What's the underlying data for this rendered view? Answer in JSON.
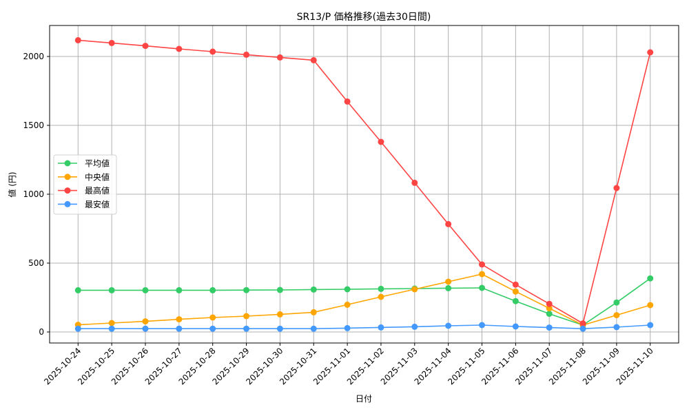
{
  "chart_data": {
    "type": "line",
    "title": "SR13/P 価格推移(過去30日間)",
    "xlabel": "日付",
    "ylabel": "値 (円)",
    "x": [
      "2025-10-24",
      "2025-10-25",
      "2025-10-26",
      "2025-10-27",
      "2025-10-28",
      "2025-10-29",
      "2025-10-30",
      "2025-10-31",
      "2025-11-01",
      "2025-11-02",
      "2025-11-03",
      "2025-11-04",
      "2025-11-05",
      "2025-11-06",
      "2025-11-07",
      "2025-11-08",
      "2025-11-09",
      "2025-11-10"
    ],
    "yticks": [
      0,
      500,
      1000,
      1500,
      2000
    ],
    "ylim": [
      -80,
      2220
    ],
    "grid": true,
    "legend_position": "center left",
    "series": [
      {
        "name": "平均値",
        "color": "#33cc66",
        "marker": "circle",
        "values": [
          303,
          303,
          303,
          303,
          303,
          304,
          305,
          308,
          310,
          313,
          315,
          318,
          320,
          224,
          132,
          50,
          214,
          389
        ]
      },
      {
        "name": "中央値",
        "color": "#ffa500",
        "marker": "circle",
        "values": [
          52,
          65,
          77,
          92,
          105,
          115,
          128,
          143,
          198,
          255,
          310,
          365,
          420,
          294,
          172,
          50,
          122,
          195
        ]
      },
      {
        "name": "最高値",
        "color": "#ff4444",
        "marker": "circle",
        "values": [
          2118,
          2098,
          2077,
          2055,
          2035,
          2013,
          1993,
          1973,
          1673,
          1380,
          1083,
          783,
          490,
          344,
          204,
          62,
          1045,
          2030
        ]
      },
      {
        "name": "最安値",
        "color": "#4499ff",
        "marker": "circle",
        "values": [
          24,
          24,
          24,
          24,
          24,
          24,
          24,
          24,
          28,
          33,
          38,
          45,
          50,
          40,
          32,
          24,
          35,
          50
        ]
      }
    ]
  }
}
